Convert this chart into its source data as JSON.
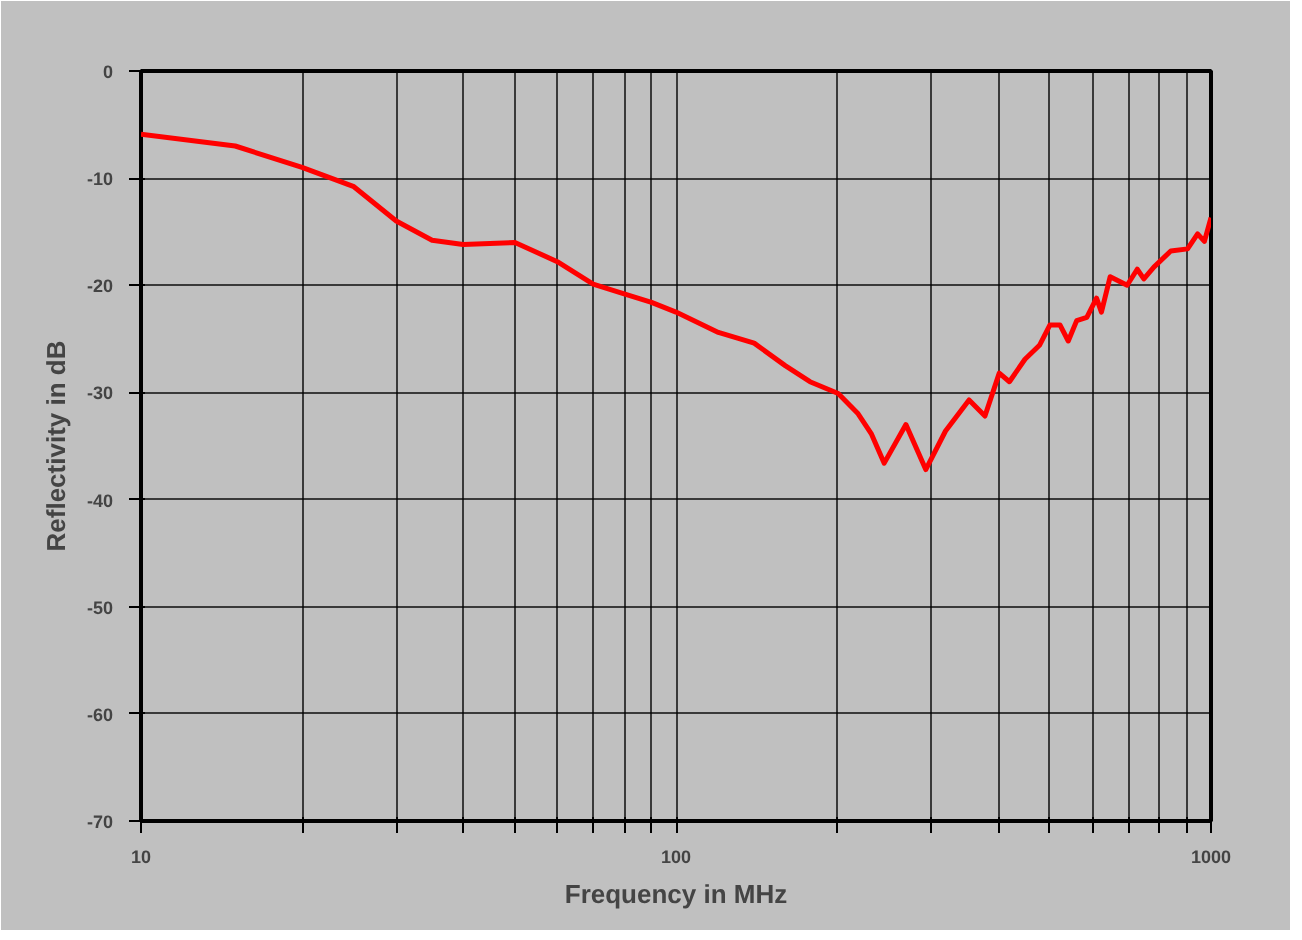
{
  "chart_data": {
    "type": "line",
    "xlabel": "Frequency in MHz",
    "ylabel": "Reflectivity in dB",
    "log": "x",
    "grid": true,
    "marker": "none",
    "line_style": "solid",
    "xlim": [
      10,
      1000
    ],
    "ylim": [
      -70,
      0
    ],
    "xticks": [
      10,
      {
        "value": 20,
        "label": null
      },
      {
        "value": 30,
        "label": null
      },
      {
        "value": 40,
        "label": null
      },
      {
        "value": 50,
        "label": null
      },
      {
        "value": 60,
        "label": null
      },
      {
        "value": 70,
        "label": null
      },
      {
        "value": 80,
        "label": null
      },
      {
        "value": 90,
        "label": null
      },
      100,
      {
        "value": 200,
        "label": null
      },
      {
        "value": 300,
        "label": null
      },
      {
        "value": 400,
        "label": null
      },
      {
        "value": 500,
        "label": null
      },
      {
        "value": 600,
        "label": null
      },
      {
        "value": 700,
        "label": null
      },
      {
        "value": 800,
        "label": null
      },
      {
        "value": 900,
        "label": null
      },
      1000
    ],
    "yticks": [
      0,
      -10,
      -20,
      -30,
      -40,
      -50,
      -60,
      -70
    ],
    "series": [
      {
        "color": "#ff0000",
        "x": [
          10,
          15,
          20,
          25,
          30,
          35,
          40,
          50,
          60,
          70,
          80,
          90,
          100,
          120,
          140,
          160,
          178,
          201,
          219,
          232,
          245,
          269,
          293,
          319,
          353,
          378,
          402,
          420,
          449,
          478,
          500,
          522,
          541,
          561,
          586,
          611,
          624,
          648,
          697,
          728,
          749,
          782,
          841,
          904,
          944,
          972,
          1000
        ],
        "values": [
          -5.9,
          -7,
          -9,
          -10.8,
          -14,
          -15.8,
          -16.2,
          -16,
          -17.8,
          -19.9,
          -20.8,
          -21.6,
          -22.5,
          -24.4,
          -25.4,
          -27.5,
          -29,
          -30.1,
          -32,
          -33.9,
          -36.6,
          -33,
          -37.2,
          -33.6,
          -30.7,
          -32.2,
          -28.2,
          -29,
          -26.9,
          -25.6,
          -23.7,
          -23.7,
          -25.2,
          -23.3,
          -23,
          -21.2,
          -22.5,
          -19.2,
          -20,
          -18.5,
          -19.4,
          -18.3,
          -16.8,
          -16.6,
          -15.2,
          -15.9,
          -13.7
        ]
      }
    ]
  }
}
